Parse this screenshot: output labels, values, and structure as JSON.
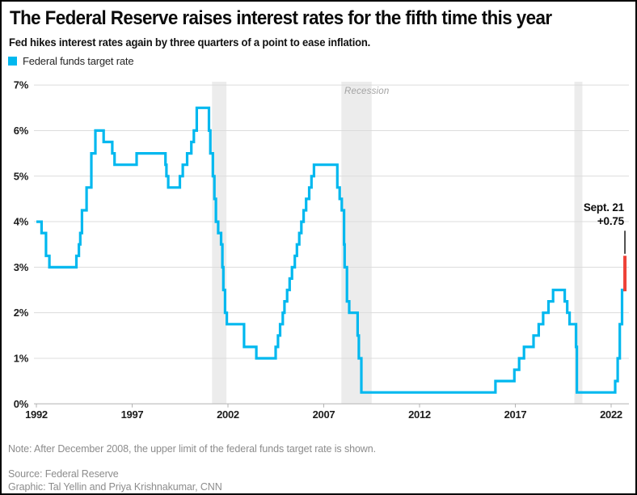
{
  "header": {
    "title": "The Federal Reserve raises interest rates for the fifth time this year",
    "subtitle": "Fed hikes interest rates again by three quarters of a point to ease inflation.",
    "legend": {
      "label": "Federal funds target rate",
      "swatch_color": "#00b8ef"
    }
  },
  "chart_data": {
    "type": "line",
    "subtype": "step-after",
    "series_name": "Federal funds target rate",
    "unit": "%",
    "x_range": [
      1992,
      2022.8
    ],
    "y_range": [
      0,
      7
    ],
    "grid": true,
    "legend_position": "top-left",
    "line_color": "#00b8ef",
    "x_ticks": [
      1992,
      1997,
      2002,
      2007,
      2012,
      2017,
      2022
    ],
    "y_ticks": [
      0,
      1,
      2,
      3,
      4,
      5,
      6,
      7
    ],
    "y_tick_labels": [
      "0%",
      "1%",
      "2%",
      "3%",
      "4%",
      "5%",
      "6%",
      "7%"
    ],
    "points": [
      [
        1992.0,
        4.0
      ],
      [
        1992.27,
        3.75
      ],
      [
        1992.5,
        3.25
      ],
      [
        1992.68,
        3.0
      ],
      [
        1994.09,
        3.25
      ],
      [
        1994.22,
        3.5
      ],
      [
        1994.29,
        3.75
      ],
      [
        1994.38,
        4.25
      ],
      [
        1994.62,
        4.75
      ],
      [
        1994.87,
        5.5
      ],
      [
        1995.08,
        6.0
      ],
      [
        1995.51,
        5.75
      ],
      [
        1995.96,
        5.5
      ],
      [
        1996.08,
        5.25
      ],
      [
        1997.23,
        5.5
      ],
      [
        1998.74,
        5.25
      ],
      [
        1998.79,
        5.0
      ],
      [
        1998.88,
        4.75
      ],
      [
        1999.49,
        5.0
      ],
      [
        1999.64,
        5.25
      ],
      [
        1999.87,
        5.5
      ],
      [
        2000.09,
        5.75
      ],
      [
        2000.22,
        6.0
      ],
      [
        2000.37,
        6.5
      ],
      [
        2001.01,
        6.0
      ],
      [
        2001.08,
        5.5
      ],
      [
        2001.21,
        5.0
      ],
      [
        2001.29,
        4.5
      ],
      [
        2001.37,
        4.0
      ],
      [
        2001.49,
        3.75
      ],
      [
        2001.64,
        3.5
      ],
      [
        2001.71,
        3.0
      ],
      [
        2001.76,
        2.5
      ],
      [
        2001.85,
        2.0
      ],
      [
        2001.94,
        1.75
      ],
      [
        2002.84,
        1.25
      ],
      [
        2003.48,
        1.0
      ],
      [
        2004.49,
        1.25
      ],
      [
        2004.61,
        1.5
      ],
      [
        2004.72,
        1.75
      ],
      [
        2004.86,
        2.0
      ],
      [
        2004.95,
        2.25
      ],
      [
        2005.09,
        2.5
      ],
      [
        2005.22,
        2.75
      ],
      [
        2005.34,
        3.0
      ],
      [
        2005.49,
        3.25
      ],
      [
        2005.6,
        3.5
      ],
      [
        2005.72,
        3.75
      ],
      [
        2005.83,
        4.0
      ],
      [
        2005.95,
        4.25
      ],
      [
        2006.08,
        4.5
      ],
      [
        2006.24,
        4.75
      ],
      [
        2006.36,
        5.0
      ],
      [
        2006.49,
        5.25
      ],
      [
        2007.71,
        4.75
      ],
      [
        2007.83,
        4.5
      ],
      [
        2007.94,
        4.25
      ],
      [
        2008.06,
        3.5
      ],
      [
        2008.09,
        3.0
      ],
      [
        2008.21,
        2.25
      ],
      [
        2008.33,
        2.0
      ],
      [
        2008.77,
        1.5
      ],
      [
        2008.83,
        1.0
      ],
      [
        2008.96,
        0.25
      ],
      [
        2015.96,
        0.5
      ],
      [
        2016.95,
        0.75
      ],
      [
        2017.2,
        1.0
      ],
      [
        2017.45,
        1.25
      ],
      [
        2017.95,
        1.5
      ],
      [
        2018.22,
        1.75
      ],
      [
        2018.45,
        2.0
      ],
      [
        2018.73,
        2.25
      ],
      [
        2018.97,
        2.5
      ],
      [
        2019.58,
        2.25
      ],
      [
        2019.71,
        2.0
      ],
      [
        2019.83,
        1.75
      ],
      [
        2020.17,
        1.25
      ],
      [
        2020.21,
        0.25
      ],
      [
        2022.21,
        0.5
      ],
      [
        2022.34,
        1.0
      ],
      [
        2022.45,
        1.75
      ],
      [
        2022.57,
        2.5
      ]
    ],
    "final_hike": {
      "x": 2022.72,
      "from": 2.5,
      "to": 3.25,
      "color": "#ee4137",
      "label_line1": "Sept. 21",
      "label_line2": "+0.75"
    },
    "recessions": {
      "label": "Recession",
      "band_color": "#ececec",
      "bands": [
        [
          2001.17,
          2001.92
        ],
        [
          2007.92,
          2009.5
        ],
        [
          2020.08,
          2020.5
        ]
      ]
    },
    "colors": {
      "gridline": "#dcdcdc",
      "zero_axis": "#b3b3b3",
      "pointer_line": "#4d4d4d",
      "tick_text": "#1c1c1c"
    }
  },
  "footer": {
    "note": "Note: After December 2008, the upper limit of the federal funds target rate is shown.",
    "source": "Source: Federal Reserve",
    "credit": "Graphic: Tal Yellin and Priya Krishnakumar, CNN"
  }
}
